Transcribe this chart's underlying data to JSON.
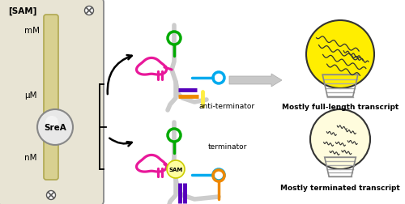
{
  "bg_panel_color": "#e8e4d4",
  "bar_color": "#d8d090",
  "bar_outline": "#b0a850",
  "label_sam": "[SAM]",
  "label_mm": "mM",
  "label_um": "μM",
  "label_nm": "nM",
  "label_srea": "SreA",
  "label_sam_bubble": "SAM",
  "label_antiterminator": "anti-terminator",
  "label_terminator": "terminator",
  "label_full": "Mostly full-length transcript",
  "label_terminated": "Mostly terminated transcript",
  "color_pink": "#e8189a",
  "color_green": "#00aa00",
  "color_blue": "#00aaee",
  "color_purple": "#5500bb",
  "color_orange": "#ee8800",
  "color_yellow_bright": "#ffee00",
  "color_yellow_pale": "#fffcdd",
  "color_backbone": "#cccccc",
  "color_arrow_gray": "#aaaaaa",
  "figw": 5.0,
  "figh": 2.53,
  "dpi": 100
}
